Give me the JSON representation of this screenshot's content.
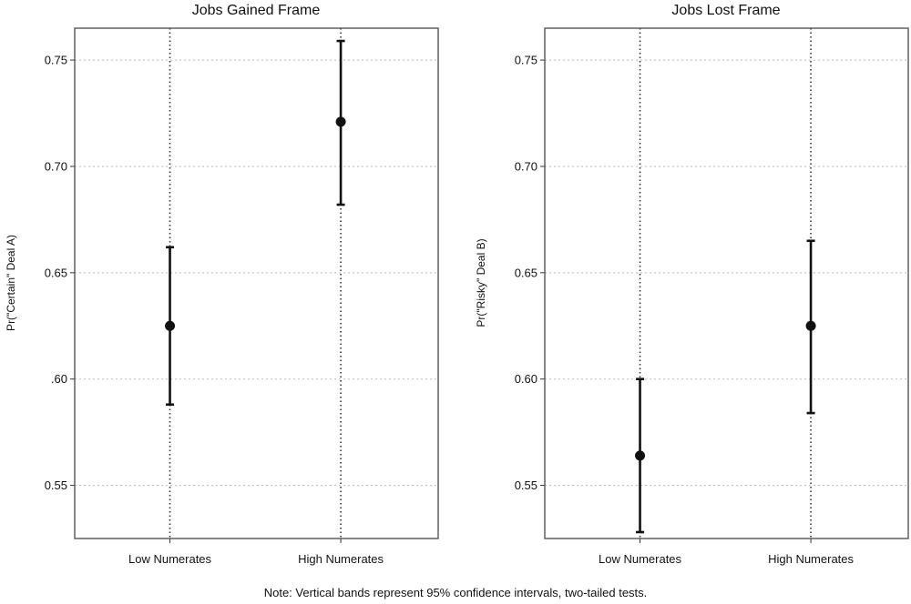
{
  "chart_data": [
    {
      "type": "scatter",
      "title": "Jobs Gained Frame",
      "ylabel": "Pr(\"Certain\" Deal A)",
      "xlabel": "",
      "categories": [
        "Low Numerates",
        "High Numerates"
      ],
      "ylim": [
        0.525,
        0.765
      ],
      "yticks": [
        {
          "value": 0.75,
          "label": "0.75"
        },
        {
          "value": 0.7,
          "label": "0.70"
        },
        {
          "value": 0.65,
          "label": "0.65"
        },
        {
          "value": 0.6,
          "label": ".60"
        },
        {
          "value": 0.55,
          "label": "0.55"
        }
      ],
      "series": [
        {
          "points": [
            {
              "category": "Low Numerates",
              "estimate": 0.625,
              "ci_low": 0.588,
              "ci_high": 0.662
            },
            {
              "category": "High Numerates",
              "estimate": 0.721,
              "ci_low": 0.682,
              "ci_high": 0.759
            }
          ]
        }
      ],
      "grid": true
    },
    {
      "type": "scatter",
      "title": "Jobs Lost Frame",
      "ylabel": "Pr(\"Risky\" Deal B)",
      "xlabel": "",
      "categories": [
        "Low Numerates",
        "High Numerates"
      ],
      "ylim": [
        0.525,
        0.765
      ],
      "yticks": [
        {
          "value": 0.75,
          "label": "0.75"
        },
        {
          "value": 0.7,
          "label": "0.70"
        },
        {
          "value": 0.65,
          "label": "0.65"
        },
        {
          "value": 0.6,
          "label": "0.60"
        },
        {
          "value": 0.55,
          "label": "0.55"
        }
      ],
      "series": [
        {
          "points": [
            {
              "category": "Low Numerates",
              "estimate": 0.564,
              "ci_low": 0.528,
              "ci_high": 0.6
            },
            {
              "category": "High Numerates",
              "estimate": 0.625,
              "ci_low": 0.584,
              "ci_high": 0.665
            }
          ]
        }
      ],
      "grid": true
    }
  ],
  "note": "Note: Vertical bands represent 95% confidence intervals, two-tailed tests."
}
